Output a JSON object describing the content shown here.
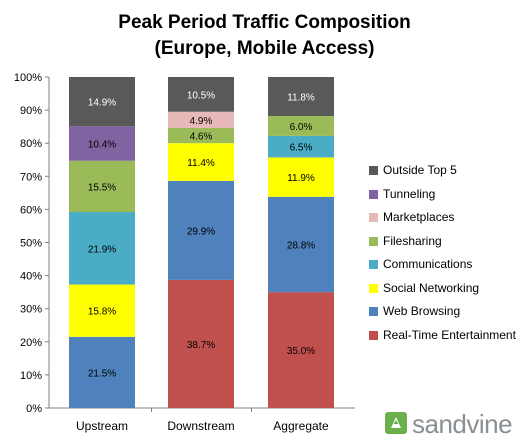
{
  "chart_data": {
    "type": "bar",
    "stacked": true,
    "title": "Peak Period Traffic Composition",
    "subtitle": "(Europe, Mobile Access)",
    "categories": [
      "Upstream",
      "Downstream",
      "Aggregate"
    ],
    "ylim": [
      0,
      100
    ],
    "y_ticks": [
      "0%",
      "10%",
      "20%",
      "30%",
      "40%",
      "50%",
      "60%",
      "70%",
      "80%",
      "90%",
      "100%"
    ],
    "y_unit": "%",
    "grid": false,
    "legend_position": "right",
    "series": [
      {
        "name": "Real-Time Entertainment",
        "color": "#c0504d",
        "values": [
          0,
          38.7,
          35.0
        ],
        "labels": [
          "",
          "38.7%",
          "35.0%"
        ]
      },
      {
        "name": "Web Browsing",
        "color": "#4f81bd",
        "values": [
          21.5,
          29.9,
          28.8
        ],
        "labels": [
          "21.5%",
          "29.9%",
          "28.8%"
        ]
      },
      {
        "name": "Social Networking",
        "color": "#ffff00",
        "values": [
          15.8,
          11.4,
          11.9
        ],
        "labels": [
          "15.8%",
          "11.4%",
          "11.9%"
        ]
      },
      {
        "name": "Communications",
        "color": "#4bacc6",
        "values": [
          21.9,
          0,
          6.5
        ],
        "labels": [
          "21.9%",
          "",
          "6.5%"
        ]
      },
      {
        "name": "Filesharing",
        "color": "#9bbb59",
        "values": [
          15.5,
          4.6,
          6.0
        ],
        "labels": [
          "15.5%",
          "4.6%",
          "6.0%"
        ]
      },
      {
        "name": "Marketplaces",
        "color": "#e6b9b8",
        "values": [
          0,
          4.9,
          0
        ],
        "labels": [
          "",
          "4.9%",
          ""
        ]
      },
      {
        "name": "Tunneling",
        "color": "#8064a2",
        "values": [
          10.4,
          0,
          0
        ],
        "labels": [
          "10.4%",
          "",
          ""
        ]
      },
      {
        "name": "Outside Top 5",
        "color": "#595959",
        "values": [
          14.9,
          10.5,
          11.8
        ],
        "labels": [
          "14.9%",
          "10.5%",
          "11.8%"
        ]
      }
    ],
    "legend_order": [
      "Outside Top 5",
      "Tunneling",
      "Marketplaces",
      "Filesharing",
      "Communications",
      "Social Networking",
      "Web Browsing",
      "Real-Time Entertainment"
    ]
  },
  "logo": {
    "text": "sandvine",
    "mark_color": "#6ab04c",
    "text_color": "#8a8f93"
  }
}
